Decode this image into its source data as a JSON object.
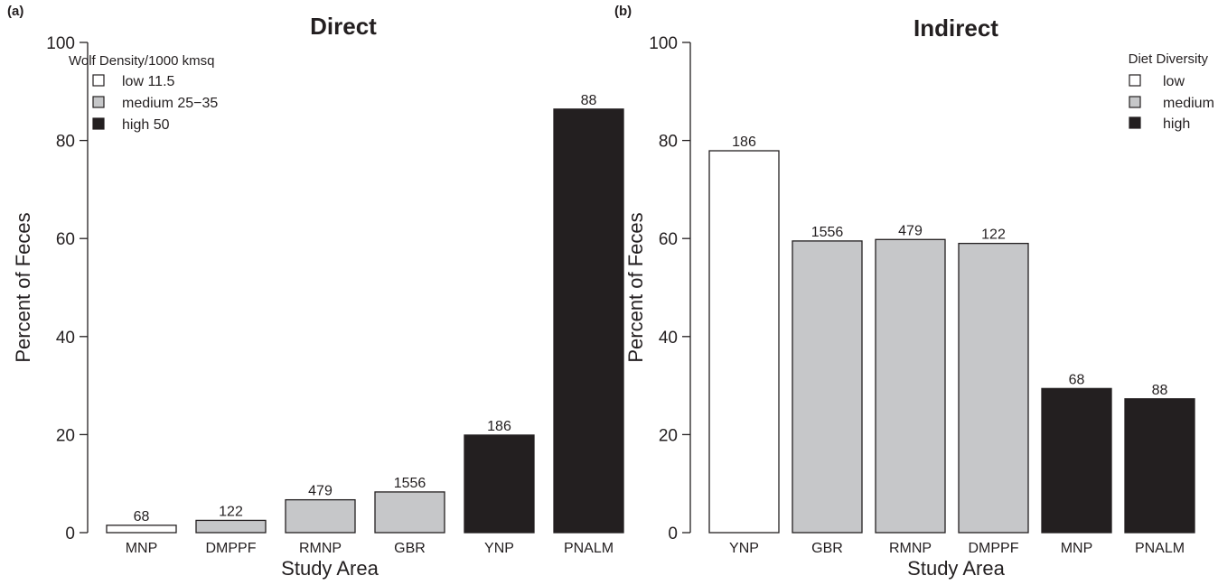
{
  "chart_data": [
    {
      "type": "bar",
      "panel_label": "(a)",
      "title": "Direct",
      "xlabel": "Study Area",
      "ylabel": "Percent of Feces",
      "ylim": [
        0,
        100
      ],
      "yticks": [
        0,
        20,
        40,
        60,
        80,
        100
      ],
      "categories": [
        "MNP",
        "DMPPF",
        "RMNP",
        "GBR",
        "YNP",
        "PNALM"
      ],
      "values": [
        1.5,
        2.5,
        6.7,
        8.3,
        19.9,
        86.4
      ],
      "bar_labels": [
        "68",
        "122",
        "479",
        "1556",
        "186",
        "88"
      ],
      "groups": [
        "low",
        "medium",
        "medium",
        "medium",
        "high",
        "high"
      ],
      "legend": {
        "title": "Wolf Density/1000 kmsq",
        "position": "top-left",
        "entries": [
          {
            "key": "low",
            "label": "low 11.5",
            "color": "#ffffff"
          },
          {
            "key": "medium",
            "label": "medium 25−35",
            "color": "#c6c7c9"
          },
          {
            "key": "high",
            "label": "high 50",
            "color": "#231f20"
          }
        ]
      },
      "grid": false
    },
    {
      "type": "bar",
      "panel_label": "(b)",
      "title": "Indirect",
      "xlabel": "Study Area",
      "ylabel": "Percent of Feces",
      "ylim": [
        0,
        100
      ],
      "yticks": [
        0,
        20,
        40,
        60,
        80,
        100
      ],
      "categories": [
        "YNP",
        "GBR",
        "RMNP",
        "DMPPF",
        "MNP",
        "PNALM"
      ],
      "values": [
        77.9,
        59.5,
        59.8,
        59.0,
        29.4,
        27.3
      ],
      "bar_labels": [
        "186",
        "1556",
        "479",
        "122",
        "68",
        "88"
      ],
      "groups": [
        "low",
        "medium",
        "medium",
        "medium",
        "high",
        "high"
      ],
      "legend": {
        "title": "Diet Diversity",
        "position": "top-right",
        "entries": [
          {
            "key": "low",
            "label": "low",
            "color": "#ffffff"
          },
          {
            "key": "medium",
            "label": "medium",
            "color": "#c6c7c9"
          },
          {
            "key": "high",
            "label": "high",
            "color": "#231f20"
          }
        ]
      },
      "grid": false
    }
  ]
}
